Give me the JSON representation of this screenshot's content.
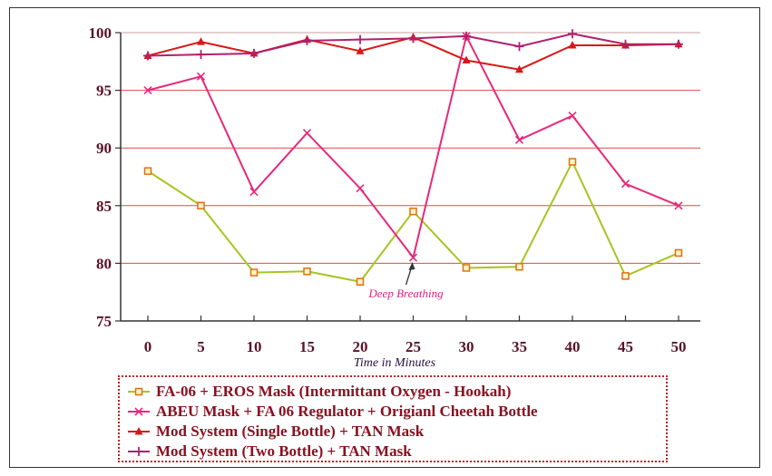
{
  "chart_data": {
    "type": "line",
    "title": "",
    "xlabel": "Time in Minutes",
    "ylabel": "",
    "x": [
      0,
      5,
      10,
      15,
      20,
      25,
      30,
      35,
      40,
      45,
      50
    ],
    "ylim": [
      75,
      100
    ],
    "yticks": [
      75,
      80,
      85,
      90,
      95,
      100
    ],
    "grid": "horizontal",
    "legend_position": "bottom",
    "annotation": {
      "text": "Deep Breathing",
      "x": 25,
      "y": 80.5
    },
    "series": [
      {
        "name": "FA-06 + EROS Mask (Intermittant Oxygen - Hookah)",
        "color": "#a8c420",
        "marker": "square",
        "marker_color": "#e07010",
        "values": [
          88,
          85,
          79.2,
          79.3,
          78.4,
          84.5,
          79.6,
          79.7,
          88.8,
          78.9,
          80.9
        ]
      },
      {
        "name": "ABEU Mask + FA 06 Regulator + Origianl Cheetah Bottle",
        "color": "#e8287a",
        "marker": "x",
        "marker_color": "#e8287a",
        "values": [
          95,
          96.2,
          86.2,
          91.3,
          86.5,
          80.5,
          99.7,
          90.7,
          92.8,
          86.9,
          85
        ]
      },
      {
        "name": "Mod System (Single Bottle) + TAN Mask",
        "color": "#d81818",
        "marker": "triangle",
        "marker_color": "#d81818",
        "values": [
          98,
          99.2,
          98.2,
          99.4,
          98.4,
          99.6,
          97.6,
          96.8,
          98.9,
          98.9,
          99
        ]
      },
      {
        "name": "Mod System (Two Bottle) + TAN Mask",
        "color": "#b0206e",
        "marker": "cross",
        "marker_color": "#b0206e",
        "values": [
          98,
          98.1,
          98.2,
          99.3,
          99.4,
          99.5,
          99.7,
          98.8,
          99.9,
          99,
          99
        ]
      }
    ]
  }
}
